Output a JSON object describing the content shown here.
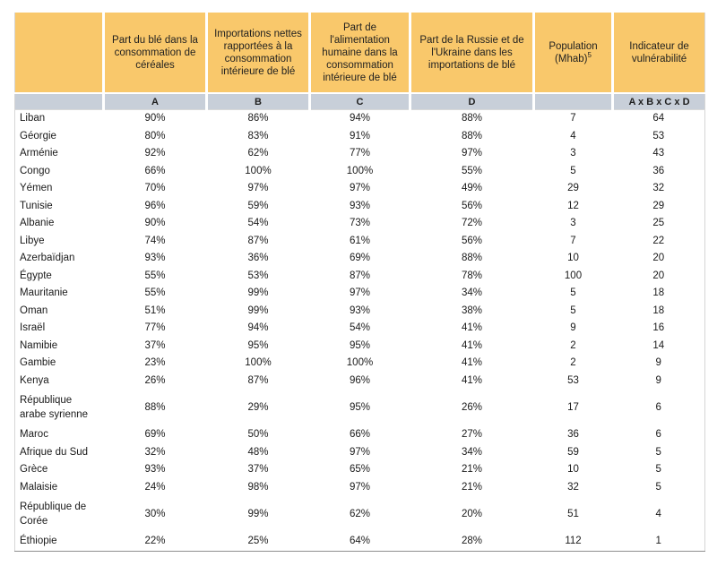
{
  "table": {
    "columns": [
      {
        "header": "",
        "code": ""
      },
      {
        "header": "Part du blé dans la consommation de céréales",
        "code": "A"
      },
      {
        "header": "Importations nettes rapportées à la consommation intérieure de blé",
        "code": "B"
      },
      {
        "header": "Part de l'alimentation humaine dans la consommation intérieure de blé",
        "code": "C"
      },
      {
        "header": "Part de la Russie et de l'Ukraine dans les importations de blé",
        "code": "D"
      },
      {
        "header": "Population (Mhab)",
        "header_sup": "5",
        "code": ""
      },
      {
        "header": "Indicateur de vulnérabilité",
        "code": "A x B x C x D"
      }
    ],
    "rows": [
      {
        "country": "Liban",
        "a": "90%",
        "b": "86%",
        "c": "94%",
        "d": "88%",
        "population": "7",
        "indicator": "64"
      },
      {
        "country": "Géorgie",
        "a": "80%",
        "b": "83%",
        "c": "91%",
        "d": "88%",
        "population": "4",
        "indicator": "53"
      },
      {
        "country": "Arménie",
        "a": "92%",
        "b": "62%",
        "c": "77%",
        "d": "97%",
        "population": "3",
        "indicator": "43"
      },
      {
        "country": "Congo",
        "a": "66%",
        "b": "100%",
        "c": "100%",
        "d": "55%",
        "population": "5",
        "indicator": "36"
      },
      {
        "country": "Yémen",
        "a": "70%",
        "b": "97%",
        "c": "97%",
        "d": "49%",
        "population": "29",
        "indicator": "32"
      },
      {
        "country": "Tunisie",
        "a": "96%",
        "b": "59%",
        "c": "93%",
        "d": "56%",
        "population": "12",
        "indicator": "29"
      },
      {
        "country": "Albanie",
        "a": "90%",
        "b": "54%",
        "c": "73%",
        "d": "72%",
        "population": "3",
        "indicator": "25"
      },
      {
        "country": "Libye",
        "a": "74%",
        "b": "87%",
        "c": "61%",
        "d": "56%",
        "population": "7",
        "indicator": "22"
      },
      {
        "country": "Azerbaïdjan",
        "a": "93%",
        "b": "36%",
        "c": "69%",
        "d": "88%",
        "population": "10",
        "indicator": "20"
      },
      {
        "country": "Égypte",
        "a": "55%",
        "b": "53%",
        "c": "87%",
        "d": "78%",
        "population": "100",
        "indicator": "20"
      },
      {
        "country": "Mauritanie",
        "a": "55%",
        "b": "99%",
        "c": "97%",
        "d": "34%",
        "population": "5",
        "indicator": "18"
      },
      {
        "country": "Oman",
        "a": "51%",
        "b": "99%",
        "c": "93%",
        "d": "38%",
        "population": "5",
        "indicator": "18"
      },
      {
        "country": "Israël",
        "a": "77%",
        "b": "94%",
        "c": "54%",
        "d": "41%",
        "population": "9",
        "indicator": "16"
      },
      {
        "country": "Namibie",
        "a": "37%",
        "b": "95%",
        "c": "95%",
        "d": "41%",
        "population": "2",
        "indicator": "14"
      },
      {
        "country": "Gambie",
        "a": "23%",
        "b": "100%",
        "c": "100%",
        "d": "41%",
        "population": "2",
        "indicator": "9"
      },
      {
        "country": "Kenya",
        "a": "26%",
        "b": "87%",
        "c": "96%",
        "d": "41%",
        "population": "53",
        "indicator": "9"
      },
      {
        "country": "République arabe syrienne",
        "a": "88%",
        "b": "29%",
        "c": "95%",
        "d": "26%",
        "population": "17",
        "indicator": "6"
      },
      {
        "country": "Maroc",
        "a": "69%",
        "b": "50%",
        "c": "66%",
        "d": "27%",
        "population": "36",
        "indicator": "6"
      },
      {
        "country": "Afrique du Sud",
        "a": "32%",
        "b": "48%",
        "c": "97%",
        "d": "34%",
        "population": "59",
        "indicator": "5"
      },
      {
        "country": "Grèce",
        "a": "93%",
        "b": "37%",
        "c": "65%",
        "d": "21%",
        "population": "10",
        "indicator": "5"
      },
      {
        "country": "Malaisie",
        "a": "24%",
        "b": "98%",
        "c": "97%",
        "d": "21%",
        "population": "32",
        "indicator": "5"
      },
      {
        "country": "République de Corée",
        "a": "30%",
        "b": "99%",
        "c": "62%",
        "d": "20%",
        "population": "51",
        "indicator": "4"
      },
      {
        "country": "Éthiopie",
        "a": "22%",
        "b": "25%",
        "c": "64%",
        "d": "28%",
        "population": "112",
        "indicator": "1"
      }
    ]
  },
  "colors": {
    "header_background": "#f9c86b",
    "code_row_background": "#c8cfd9",
    "border": "#8f8f8f",
    "text": "#1a1a1a"
  }
}
